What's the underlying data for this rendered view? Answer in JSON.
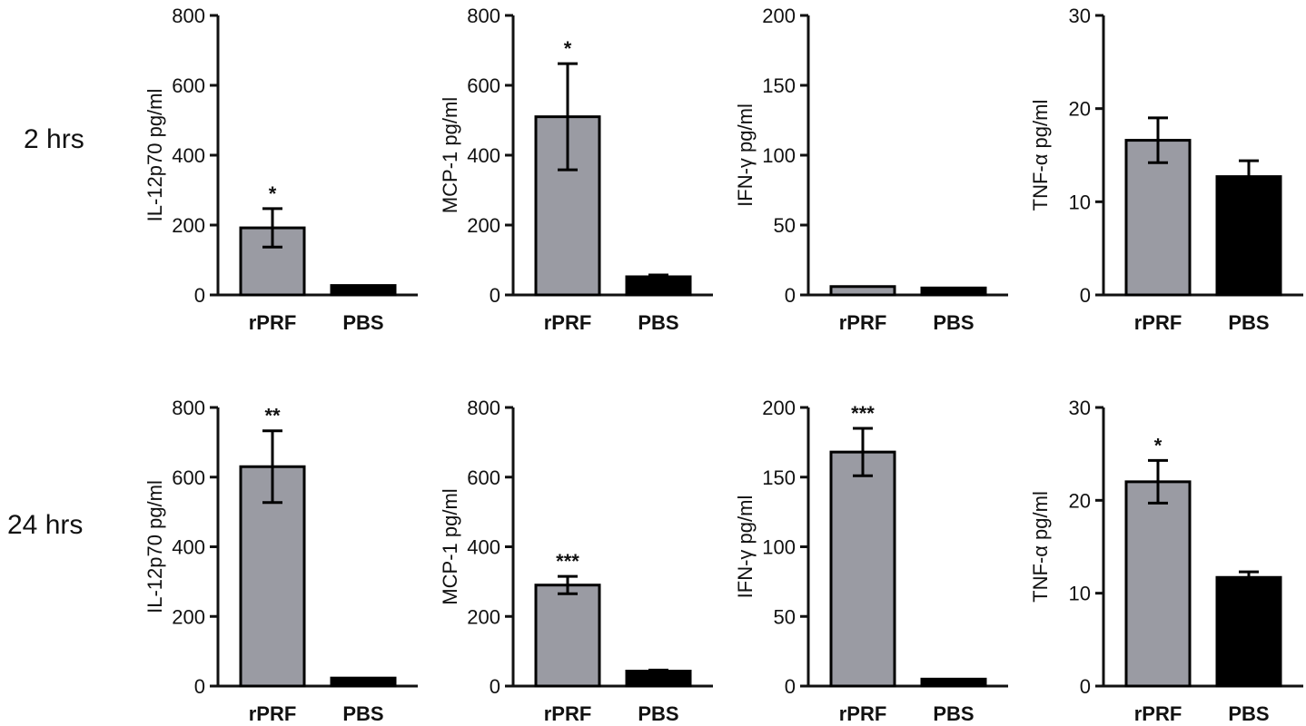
{
  "row_labels": [
    "2 hrs",
    "24 hrs"
  ],
  "colors": {
    "rPRF": "#9a9ba3",
    "PBS": "#000000",
    "axis": "#111111"
  },
  "chart_data": [
    {
      "type": "bar",
      "row": "2 hrs",
      "ylabel": "IL-12p70 pg/ml",
      "ylim": [
        0,
        800
      ],
      "yticks": [
        0,
        200,
        400,
        600,
        800
      ],
      "categories": [
        "rPRF",
        "PBS"
      ],
      "values": [
        192,
        27
      ],
      "errors": [
        55,
        2
      ],
      "significance": [
        "*",
        ""
      ]
    },
    {
      "type": "bar",
      "row": "2 hrs",
      "ylabel": "MCP-1 pg/ml",
      "ylim": [
        0,
        800
      ],
      "yticks": [
        0,
        200,
        400,
        600,
        800
      ],
      "categories": [
        "rPRF",
        "PBS"
      ],
      "values": [
        510,
        52
      ],
      "errors": [
        152,
        5
      ],
      "significance": [
        "*",
        ""
      ]
    },
    {
      "type": "bar",
      "row": "2 hrs",
      "ylabel": "IFN-γ pg/ml",
      "ylim": [
        0,
        200
      ],
      "yticks": [
        0,
        50,
        100,
        150,
        200
      ],
      "categories": [
        "rPRF",
        "PBS"
      ],
      "values": [
        6,
        5
      ],
      "errors": [
        0.5,
        0.5
      ],
      "significance": [
        "",
        ""
      ]
    },
    {
      "type": "bar",
      "row": "2 hrs",
      "ylabel": "TNF-α pg/ml",
      "ylim": [
        0,
        30
      ],
      "yticks": [
        0,
        10,
        20,
        30
      ],
      "categories": [
        "rPRF",
        "PBS"
      ],
      "values": [
        16.6,
        12.7
      ],
      "errors": [
        2.4,
        1.7
      ],
      "significance": [
        "",
        ""
      ]
    },
    {
      "type": "bar",
      "row": "24 hrs",
      "ylabel": "IL-12p70 pg/ml",
      "ylim": [
        0,
        800
      ],
      "yticks": [
        0,
        200,
        400,
        600,
        800
      ],
      "categories": [
        "rPRF",
        "PBS"
      ],
      "values": [
        630,
        23
      ],
      "errors": [
        103,
        2
      ],
      "significance": [
        "**",
        ""
      ]
    },
    {
      "type": "bar",
      "row": "24 hrs",
      "ylabel": "MCP-1 pg/ml",
      "ylim": [
        0,
        800
      ],
      "yticks": [
        0,
        200,
        400,
        600,
        800
      ],
      "categories": [
        "rPRF",
        "PBS"
      ],
      "values": [
        290,
        43
      ],
      "errors": [
        25,
        3
      ],
      "significance": [
        "***",
        ""
      ]
    },
    {
      "type": "bar",
      "row": "24 hrs",
      "ylabel": "IFN-γ pg/ml",
      "ylim": [
        0,
        200
      ],
      "yticks": [
        0,
        50,
        100,
        150,
        200
      ],
      "categories": [
        "rPRF",
        "PBS"
      ],
      "values": [
        168,
        5
      ],
      "errors": [
        17,
        0.5
      ],
      "significance": [
        "***",
        ""
      ]
    },
    {
      "type": "bar",
      "row": "24 hrs",
      "ylabel": "TNF-α pg/ml",
      "ylim": [
        0,
        30
      ],
      "yticks": [
        0,
        10,
        20,
        30
      ],
      "categories": [
        "rPRF",
        "PBS"
      ],
      "values": [
        22,
        11.7
      ],
      "errors": [
        2.3,
        0.6
      ],
      "significance": [
        "*",
        ""
      ]
    }
  ]
}
